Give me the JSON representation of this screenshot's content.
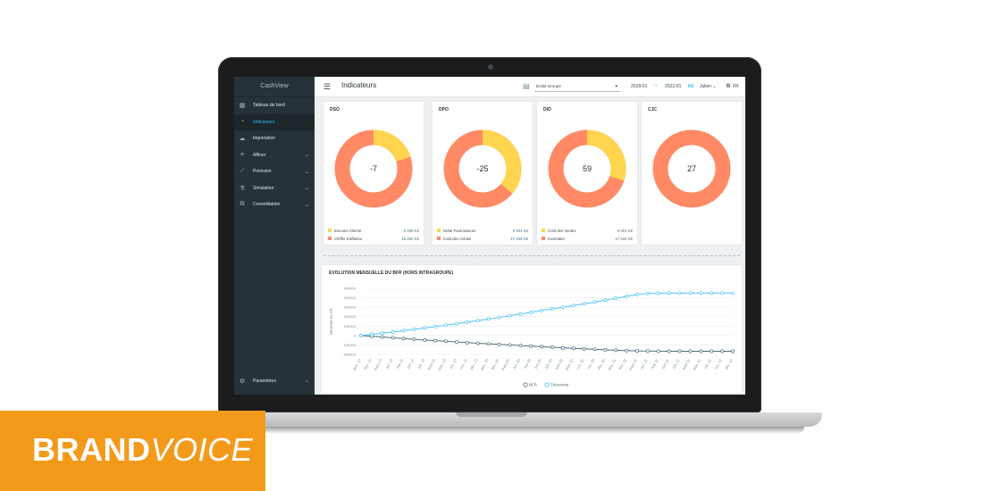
{
  "app": {
    "name": "CashView"
  },
  "sidebar": {
    "items": [
      {
        "label": "Tableau de bord",
        "icon": "dashboard-icon",
        "chevron": false,
        "active": false
      },
      {
        "label": "Indicateurs",
        "icon": "gauge-icon",
        "chevron": false,
        "active": true
      },
      {
        "label": "Importation",
        "icon": "cloud-upload-icon",
        "chevron": false,
        "active": false
      },
      {
        "label": "Affiner",
        "icon": "filter-icon",
        "chevron": true,
        "active": false
      },
      {
        "label": "Prévision",
        "icon": "trend-icon",
        "chevron": true,
        "active": false
      },
      {
        "label": "Simulation",
        "icon": "flask-icon",
        "chevron": true,
        "active": false
      },
      {
        "label": "Consolidation",
        "icon": "network-icon",
        "chevron": true,
        "active": false
      }
    ],
    "settings_label": "Paramètres"
  },
  "header": {
    "title": "Indicateurs",
    "group_select": "Entité Groupe",
    "date_from": "2018-01",
    "date_to": "2022-01",
    "unit": "K€",
    "user": "Julien",
    "language": "FR"
  },
  "colors": {
    "yellow": "#ffd54f",
    "orange": "#ff8a65",
    "sidebar": "#263238",
    "accent": "#29b6f6",
    "bfr_line": "#546e7a",
    "treso_line": "#4fc3f7"
  },
  "kpis": [
    {
      "title": "DSO",
      "value": "-7",
      "yellow_share": 0.2,
      "legend": [
        {
          "label": "Encours Clients",
          "value": "-3 929 K€",
          "color": "#ffd54f"
        },
        {
          "label": "Chiffre d'affaires",
          "value": "16 000 K€",
          "color": "#ff8a65"
        }
      ]
    },
    {
      "title": "DPO",
      "value": "-25",
      "yellow_share": 0.36,
      "legend": [
        {
          "label": "Dette Fournisseurs",
          "value": "9 601 K€",
          "color": "#ffd54f"
        },
        {
          "label": "Coût des Achats",
          "value": "-12 939 K€",
          "color": "#ff8a65"
        }
      ]
    },
    {
      "title": "DIO",
      "value": "59",
      "yellow_share": 0.3,
      "legend": [
        {
          "label": "Coût des Ventes",
          "value": "9 601 K€",
          "color": "#ffd54f"
        },
        {
          "label": "Inventaire",
          "value": "17 926 K€",
          "color": "#ff8a65"
        }
      ]
    },
    {
      "title": "CJC",
      "value": "27",
      "yellow_share": 0,
      "legend": []
    }
  ],
  "chart_data": {
    "type": "line",
    "title": "EVOLUTION MENSUELLE DU BFR (HORS INTRAGROUPE)",
    "ylabel": "Montant en K€",
    "ylim": [
      -200000,
      500000
    ],
    "yticks": [
      500000,
      400000,
      300000,
      200000,
      100000,
      0,
      -100000,
      -200000
    ],
    "ytick_labels": [
      "500000",
      "400000",
      "300000",
      "200000",
      "100000",
      "0",
      "-100000",
      "-200000"
    ],
    "categories": [
      "janv. 19",
      "févr. 19",
      "mars 19",
      "avr. 19",
      "mai 19",
      "juin 19",
      "juil. 19",
      "août 19",
      "sept. 19",
      "oct. 19",
      "nov. 19",
      "déc. 19",
      "janv. 20",
      "févr. 20",
      "mars 20",
      "avr. 20",
      "mai 20",
      "juin 20",
      "juil. 20",
      "août 20",
      "sept. 20",
      "oct. 20",
      "nov. 20",
      "déc. 20",
      "janv. 21",
      "févr. 21",
      "mars 21",
      "avr. 21",
      "mai 21",
      "juin 21",
      "juil. 21",
      "août 21",
      "sept. 21",
      "oct. 21",
      "nov. 21",
      "déc. 21"
    ],
    "series": [
      {
        "name": "BFR",
        "color": "#546e7a",
        "values": [
          0,
          -8000,
          -16000,
          -24000,
          -32000,
          -40000,
          -47000,
          -54000,
          -61000,
          -68000,
          -75000,
          -82000,
          -88000,
          -94000,
          -100000,
          -106000,
          -112000,
          -118000,
          -124000,
          -130000,
          -136000,
          -141000,
          -146000,
          -151000,
          -156000,
          -160000,
          -163000,
          -165000,
          -166000,
          -167000,
          -167000,
          -167000,
          -167000,
          -167000,
          -167000,
          -167000
        ]
      },
      {
        "name": "Trésorerie",
        "color": "#4fc3f7",
        "values": [
          0,
          12000,
          25000,
          38000,
          52000,
          66000,
          80000,
          95000,
          110000,
          126000,
          142000,
          158000,
          175000,
          192000,
          210000,
          228000,
          246000,
          265000,
          283000,
          300000,
          318000,
          336000,
          355000,
          375000,
          395000,
          415000,
          435000,
          445000,
          448000,
          450000,
          450000,
          450000,
          450000,
          450000,
          450000,
          450000
        ]
      }
    ]
  }
}
